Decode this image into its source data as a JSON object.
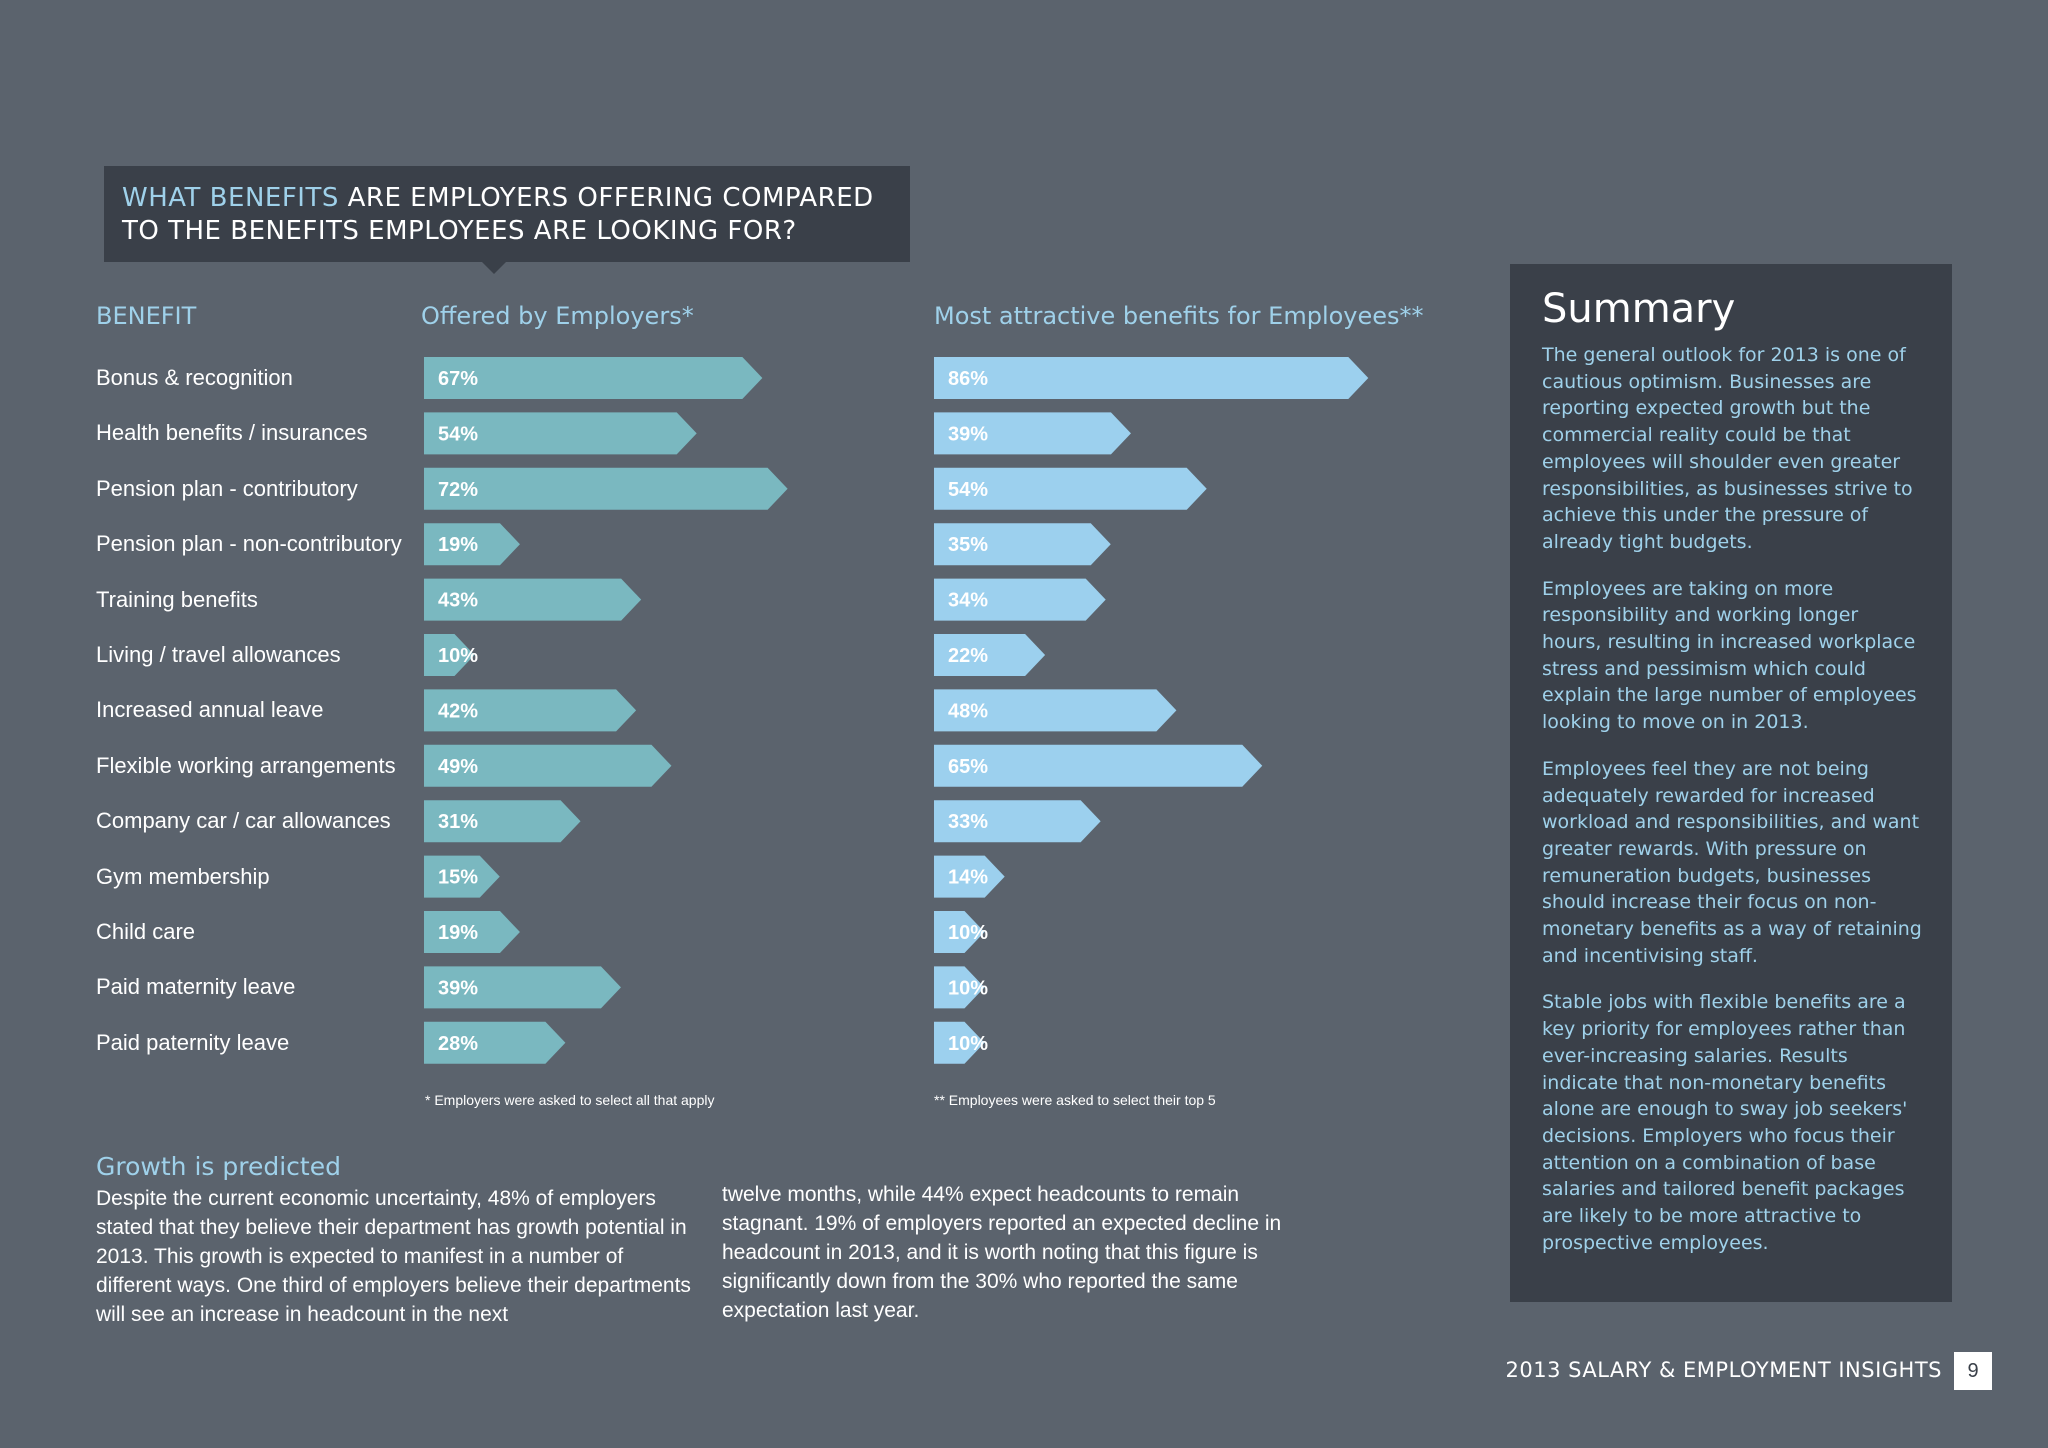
{
  "title": {
    "accent": "WHAT BENEFITS",
    "line1_rest": " ARE EMPLOYERS OFFERING COMPARED",
    "line2": "TO THE BENEFITS EMPLOYEES ARE LOOKING FOR?"
  },
  "headers": {
    "benefit": "BENEFIT",
    "employers": "Offered by Employers*",
    "employees": "Most attractive benefits for Employees**"
  },
  "footnotes": {
    "employers": "* Employers were asked to select all that apply",
    "employees": "** Employees were asked to select their top 5"
  },
  "colors": {
    "background": "#5b636d",
    "panel": "#3a4049",
    "accent": "#9fd1ea",
    "employers_bar": "#7ab8c0",
    "employees_bar": "#9cd0ee"
  },
  "chart_data": {
    "type": "bar",
    "orientation": "horizontal",
    "categories": [
      "Bonus & recognition",
      "Health benefits / insurances",
      "Pension plan - contributory",
      "Pension plan - non-contributory",
      "Training benefits",
      "Living / travel allowances",
      "Increased annual leave",
      "Flexible working arrangements",
      "Company car / car allowances",
      "Gym membership",
      "Child care",
      "Paid maternity leave",
      "Paid paternity leave"
    ],
    "series": [
      {
        "name": "Offered by Employers*",
        "values": [
          67,
          54,
          72,
          19,
          43,
          10,
          42,
          49,
          31,
          15,
          19,
          39,
          28
        ],
        "labels": [
          "67%",
          "54%",
          "72%",
          "19%",
          "43%",
          "10%",
          "42%",
          "49%",
          "31%",
          "15%",
          "19%",
          "39%",
          "28%"
        ]
      },
      {
        "name": "Most attractive benefits for Employees**",
        "values": [
          86,
          39,
          54,
          35,
          34,
          22,
          48,
          65,
          33,
          14,
          10,
          10,
          10
        ],
        "labels": [
          "86%",
          "39%",
          "54%",
          "35%",
          "34%",
          "22%",
          "48%",
          "65%",
          "33%",
          "14%",
          "10%",
          "10%",
          "10%"
        ]
      }
    ]
  },
  "growth": {
    "title": "Growth is predicted",
    "col1": "Despite the current economic uncertainty, 48% of employers stated that they believe their department has growth potential in 2013. This growth is expected to manifest in a number of different ways. One third of employers believe their departments will see an increase in headcount in the next",
    "col2": "twelve months, while 44% expect headcounts to remain stagnant. 19% of employers reported an expected decline in headcount in 2013, and it is worth noting that this figure is significantly down from the 30% who reported the same expectation last year."
  },
  "summary": {
    "title": "Summary",
    "paragraphs": [
      "The general outlook for 2013 is one of cautious optimism.  Businesses are reporting expected growth but the commercial reality could be that employees will shoulder even greater responsibilities, as businesses strive to achieve this under the pressure of already tight budgets.",
      "Employees are taking on more responsibility and working longer hours, resulting in increased workplace stress and pessimism which could explain the large number of employees looking to move on in 2013.",
      "Employees feel they are not being adequately rewarded for increased workload and responsibilities, and want greater rewards.  With pressure on remuneration budgets, businesses should increase their focus on non-monetary benefits as a way of retaining and incentivising staff.",
      "Stable jobs with flexible benefits are a key priority for employees rather than ever-increasing salaries. Results indicate that non-monetary benefits alone are enough to sway job seekers' decisions. Employers who focus their attention on a combination of base salaries and tailored benefit packages are likely to be more attractive to prospective employees."
    ]
  },
  "footer": {
    "text": "2013 SALARY & EMPLOYMENT INSIGHTS",
    "page": "9"
  }
}
